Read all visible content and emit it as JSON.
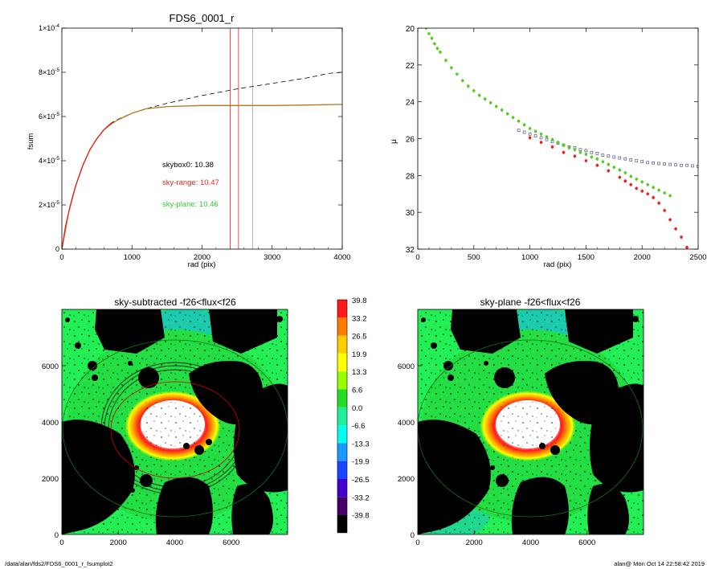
{
  "chart_data": [
    {
      "id": "fsum",
      "type": "line",
      "title": "FDS6_0001_r",
      "xlabel": "rad (pix)",
      "ylabel": "fsum",
      "xlim": [
        0,
        4000
      ],
      "ylim": [
        0,
        0.0001
      ],
      "x_ticks": [
        "0",
        "1000",
        "2000",
        "3000",
        "4000"
      ],
      "y_ticks": [
        {
          "v": 0,
          "m": "0",
          "e": ""
        },
        {
          "v": 2e-05,
          "m": "2×10",
          "e": "-5"
        },
        {
          "v": 4e-05,
          "m": "4×10",
          "e": "-5"
        },
        {
          "v": 6e-05,
          "m": "6×10",
          "e": "-5"
        },
        {
          "v": 8e-05,
          "m": "8×10",
          "e": "-5"
        },
        {
          "v": 0.0001,
          "m": "1×10",
          "e": "-4"
        }
      ],
      "series": [
        {
          "style": "dashed",
          "color": "#000000",
          "x": [
            0,
            100,
            200,
            300,
            400,
            500,
            600,
            700,
            800,
            1000,
            1200,
            1500,
            2000,
            2500,
            3000,
            3500,
            3800,
            4000
          ],
          "y": [
            0,
            1.7e-05,
            2.9e-05,
            3.8e-05,
            4.5e-05,
            5e-05,
            5.4e-05,
            5.7e-05,
            5.88e-05,
            6.15e-05,
            6.35e-05,
            6.6e-05,
            6.95e-05,
            7.25e-05,
            7.5e-05,
            7.75e-05,
            7.95e-05,
            8e-05
          ]
        },
        {
          "style": "solid",
          "color": "#b07a1c",
          "x": [
            0,
            100,
            200,
            300,
            400,
            500,
            600,
            700,
            800,
            1000,
            1200,
            1500,
            2000,
            2500,
            3000,
            3500,
            4000
          ],
          "y": [
            0,
            1.7e-05,
            2.9e-05,
            3.8e-05,
            4.5e-05,
            5e-05,
            5.4e-05,
            5.65e-05,
            5.85e-05,
            6.15e-05,
            6.35e-05,
            6.45e-05,
            6.5e-05,
            6.5e-05,
            6.5e-05,
            6.52e-05,
            6.55e-05
          ]
        },
        {
          "style": "solid",
          "color": "#e8231e",
          "x": [
            0,
            50,
            100,
            150,
            200,
            300,
            400,
            500,
            600,
            700
          ],
          "y": [
            0,
            1e-05,
            1.7e-05,
            2.35e-05,
            2.9e-05,
            3.8e-05,
            4.5e-05,
            5e-05,
            5.4e-05,
            5.7e-05
          ]
        }
      ],
      "vlines": [
        {
          "x": 2400,
          "color": "#e8231e"
        },
        {
          "x": 2520,
          "color": "#e8231e"
        },
        {
          "x": 2720,
          "color": "#999999"
        }
      ],
      "annotations": [
        {
          "text": "skybox0: 10.38",
          "color": "#000000"
        },
        {
          "text": "sky-range: 10.47",
          "color": "#e8231e"
        },
        {
          "text": "sky-plane: 10.46",
          "color": "#33cc33"
        }
      ]
    },
    {
      "id": "mu",
      "type": "scatter",
      "title": "",
      "xlabel": "rad (pix)",
      "ylabel": "μ",
      "xlim": [
        0,
        2500
      ],
      "ylim": [
        32,
        20
      ],
      "x_ticks": [
        "0",
        "500",
        "1000",
        "1500",
        "2000",
        "2500"
      ],
      "y_ticks": [
        "20",
        "22",
        "24",
        "26",
        "28",
        "30",
        "32"
      ],
      "series": [
        {
          "marker": "open-square",
          "color": "#555588",
          "x": [
            900,
            950,
            1000,
            1050,
            1100,
            1150,
            1200,
            1250,
            1300,
            1350,
            1400,
            1450,
            1500,
            1550,
            1600,
            1650,
            1700,
            1750,
            1800,
            1850,
            1900,
            1950,
            2000,
            2050,
            2100,
            2150,
            2200,
            2250,
            2300,
            2350,
            2400,
            2450,
            2500
          ],
          "y": [
            25.55,
            25.65,
            25.75,
            25.85,
            25.95,
            26.05,
            26.15,
            26.25,
            26.35,
            26.45,
            26.5,
            26.6,
            26.65,
            26.75,
            26.8,
            26.9,
            26.95,
            27.0,
            27.05,
            27.1,
            27.15,
            27.2,
            27.25,
            27.3,
            27.32,
            27.35,
            27.38,
            27.4,
            27.42,
            27.45,
            27.45,
            27.48,
            27.5
          ]
        },
        {
          "marker": "dot",
          "color": "#e8231e",
          "x": [
            1000,
            1100,
            1200,
            1300,
            1400,
            1500,
            1600,
            1700,
            1800,
            1850,
            1900,
            1950,
            2000,
            2050,
            2100,
            2150,
            2200,
            2250,
            2300,
            2350,
            2400
          ],
          "y": [
            25.95,
            26.2,
            26.45,
            26.75,
            26.95,
            27.2,
            27.45,
            27.75,
            28.1,
            28.3,
            28.5,
            28.7,
            28.85,
            29.0,
            29.2,
            29.5,
            29.9,
            30.4,
            30.9,
            31.35,
            31.9
          ]
        },
        {
          "marker": "dot",
          "color": "#55cc22",
          "x": [
            75,
            100,
            125,
            150,
            175,
            200,
            250,
            300,
            350,
            400,
            450,
            500,
            550,
            600,
            650,
            700,
            750,
            800,
            850,
            900,
            950,
            1000,
            1050,
            1100,
            1150,
            1200,
            1250,
            1300,
            1350,
            1400,
            1450,
            1500,
            1550,
            1600,
            1650,
            1700,
            1750,
            1800,
            1850,
            1900,
            1950,
            2000,
            2050,
            2100,
            2150,
            2200,
            2250
          ],
          "y": [
            20.0,
            20.3,
            20.55,
            20.85,
            21.1,
            21.3,
            21.75,
            22.15,
            22.5,
            22.85,
            23.15,
            23.4,
            23.65,
            23.85,
            24.05,
            24.25,
            24.45,
            24.65,
            24.85,
            25.05,
            25.25,
            25.45,
            25.6,
            25.75,
            25.9,
            26.05,
            26.2,
            26.35,
            26.5,
            26.6,
            26.75,
            26.85,
            27.0,
            27.1,
            27.25,
            27.4,
            27.55,
            27.7,
            27.85,
            28.05,
            28.2,
            28.35,
            28.5,
            28.65,
            28.8,
            28.95,
            29.1
          ]
        }
      ]
    },
    {
      "id": "sky-subtracted",
      "type": "heatmap",
      "title": "sky-subtracted -f26<flux<f26",
      "xlim": [
        0,
        8000
      ],
      "ylim": [
        0,
        8000
      ],
      "x_ticks": [
        "0",
        "2000",
        "4000",
        "6000"
      ],
      "y_ticks": [
        "0",
        "2000",
        "4000",
        "6000"
      ]
    },
    {
      "id": "sky-plane",
      "type": "heatmap",
      "title": "sky-plane -f26<flux<f26",
      "xlim": [
        0,
        8000
      ],
      "ylim": [
        0,
        8000
      ],
      "x_ticks": [
        "0",
        "2000",
        "4000",
        "6000"
      ],
      "y_ticks": [
        "0",
        "2000",
        "4000",
        "6000"
      ]
    }
  ],
  "colorbar": {
    "levels": [
      {
        "label": "39.8",
        "color": "#ff1a1a"
      },
      {
        "label": "33.2",
        "color": "#ff7a00"
      },
      {
        "label": "26.5",
        "color": "#ffcc00"
      },
      {
        "label": "19.9",
        "color": "#ffff00"
      },
      {
        "label": "13.3",
        "color": "#99ff00"
      },
      {
        "label": "6.6",
        "color": "#22dd22"
      },
      {
        "label": "0.0",
        "color": "#22ee99"
      },
      {
        "label": "-6.6",
        "color": "#00ffee"
      },
      {
        "label": "-13.3",
        "color": "#1a99ff"
      },
      {
        "label": "-19.9",
        "color": "#1a44ff"
      },
      {
        "label": "-26.5",
        "color": "#4400cc"
      },
      {
        "label": "-33.2",
        "color": "#440066"
      },
      {
        "label": "-39.8",
        "color": "#000000"
      }
    ]
  },
  "footer": {
    "path": "/data/alan/fds2/FDS6_0001_r_fsumplot2",
    "stamp": "alan@  Mon Oct 14 22:58:42 2019"
  }
}
